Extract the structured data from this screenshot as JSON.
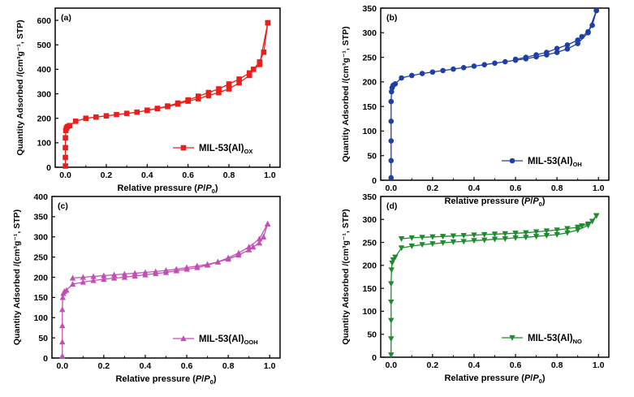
{
  "chart_data": [
    {
      "type": "line",
      "panel_label": "(a)",
      "legend_name": "MIL-53(Al)",
      "legend_sub": "OX",
      "color": "#e8201c",
      "marker": "square",
      "xlabel_main": "Relative pressure (",
      "xlabel_p": "P",
      "xlabel_slash": "/",
      "xlabel_p0": "P",
      "xlabel_zero": "0",
      "xlabel_close": ")",
      "ylabel": "Quantity Adsorbed /(cm³g⁻¹, STP)",
      "xlim": [
        -0.05,
        1.05
      ],
      "ylim": [
        0,
        650
      ],
      "xticks": [
        "0.0",
        "0.2",
        "0.4",
        "0.6",
        "0.8",
        "1.0"
      ],
      "yticks": [
        "0",
        "100",
        "200",
        "300",
        "400",
        "500",
        "600"
      ],
      "adsorption": [
        [
          0.0,
          5
        ],
        [
          0.0,
          40
        ],
        [
          0.0,
          80
        ],
        [
          0.0,
          120
        ],
        [
          0.002,
          150
        ],
        [
          0.005,
          160
        ],
        [
          0.01,
          166
        ],
        [
          0.02,
          170
        ],
        [
          0.05,
          188
        ],
        [
          0.1,
          200
        ],
        [
          0.15,
          205
        ],
        [
          0.2,
          210
        ],
        [
          0.25,
          215
        ],
        [
          0.3,
          220
        ],
        [
          0.35,
          225
        ],
        [
          0.4,
          232
        ],
        [
          0.45,
          240
        ],
        [
          0.5,
          250
        ],
        [
          0.55,
          262
        ],
        [
          0.6,
          275
        ],
        [
          0.65,
          290
        ],
        [
          0.7,
          305
        ],
        [
          0.75,
          320
        ],
        [
          0.8,
          340
        ],
        [
          0.85,
          360
        ],
        [
          0.9,
          385
        ],
        [
          0.95,
          420
        ],
        [
          0.99,
          590
        ]
      ],
      "desorption": [
        [
          0.99,
          590
        ],
        [
          0.97,
          470
        ],
        [
          0.95,
          430
        ],
        [
          0.92,
          400
        ],
        [
          0.9,
          375
        ],
        [
          0.85,
          345
        ],
        [
          0.8,
          320
        ],
        [
          0.75,
          305
        ],
        [
          0.7,
          293
        ],
        [
          0.65,
          280
        ],
        [
          0.6,
          270
        ],
        [
          0.55,
          258
        ],
        [
          0.5,
          248
        ],
        [
          0.45,
          240
        ],
        [
          0.4,
          233
        ]
      ]
    },
    {
      "type": "line",
      "panel_label": "(b)",
      "legend_name": "MIL-53(Al)",
      "legend_sub": "OH",
      "color": "#1f3fa6",
      "marker": "circle",
      "xlabel_main": "Relative pressure (",
      "xlabel_p": "P",
      "xlabel_slash": "/",
      "xlabel_p0": "P",
      "xlabel_zero": "0",
      "xlabel_close": ")",
      "ylabel": "Quantity Adsorbed /(cm³g⁻¹, STP)",
      "xlim": [
        -0.05,
        1.05
      ],
      "ylim": [
        0,
        350
      ],
      "xticks": [
        "0.0",
        "0.2",
        "0.4",
        "0.6",
        "0.8",
        "1.0"
      ],
      "yticks": [
        "0",
        "50",
        "100",
        "150",
        "200",
        "250",
        "300",
        "350"
      ],
      "adsorption": [
        [
          0.0,
          5
        ],
        [
          0.0,
          40
        ],
        [
          0.0,
          80
        ],
        [
          0.0,
          120
        ],
        [
          0.0,
          160
        ],
        [
          0.002,
          180
        ],
        [
          0.005,
          188
        ],
        [
          0.01,
          193
        ],
        [
          0.02,
          196
        ],
        [
          0.05,
          208
        ],
        [
          0.1,
          213
        ],
        [
          0.15,
          217
        ],
        [
          0.2,
          220
        ],
        [
          0.25,
          223
        ],
        [
          0.3,
          226
        ],
        [
          0.35,
          229
        ],
        [
          0.4,
          232
        ],
        [
          0.45,
          235
        ],
        [
          0.5,
          238
        ],
        [
          0.55,
          241
        ],
        [
          0.6,
          244
        ],
        [
          0.65,
          247
        ],
        [
          0.7,
          251
        ],
        [
          0.75,
          255
        ],
        [
          0.8,
          260
        ],
        [
          0.85,
          267
        ],
        [
          0.9,
          278
        ],
        [
          0.95,
          300
        ],
        [
          0.99,
          345
        ]
      ],
      "desorption": [
        [
          0.99,
          345
        ],
        [
          0.97,
          315
        ],
        [
          0.95,
          302
        ],
        [
          0.92,
          292
        ],
        [
          0.9,
          285
        ],
        [
          0.85,
          275
        ],
        [
          0.8,
          268
        ],
        [
          0.75,
          260
        ],
        [
          0.7,
          255
        ],
        [
          0.65,
          250
        ],
        [
          0.6,
          246
        ]
      ]
    },
    {
      "type": "line",
      "panel_label": "(c)",
      "legend_name": "MIL-53(Al)",
      "legend_sub": "OOH",
      "color": "#c24fb5",
      "marker": "triangle-up",
      "xlabel_main": "Relative pressure (",
      "xlabel_p": "P",
      "xlabel_slash": "/",
      "xlabel_p0": "P",
      "xlabel_zero": "0",
      "xlabel_close": ")",
      "ylabel": "Quantity Adsorbed /(cm³g⁻¹, STP)",
      "xlim": [
        -0.05,
        1.05
      ],
      "ylim": [
        0,
        400
      ],
      "xticks": [
        "0.0",
        "0.2",
        "0.4",
        "0.6",
        "0.8",
        "1.0"
      ],
      "yticks": [
        "0",
        "50",
        "100",
        "150",
        "200",
        "250",
        "300",
        "350",
        "400"
      ],
      "adsorption": [
        [
          0.0,
          5
        ],
        [
          0.0,
          40
        ],
        [
          0.0,
          80
        ],
        [
          0.0,
          120
        ],
        [
          0.002,
          150
        ],
        [
          0.005,
          160
        ],
        [
          0.01,
          165
        ],
        [
          0.02,
          168
        ],
        [
          0.05,
          183
        ],
        [
          0.1,
          188
        ],
        [
          0.15,
          192
        ],
        [
          0.2,
          195
        ],
        [
          0.25,
          198
        ],
        [
          0.3,
          200
        ],
        [
          0.35,
          203
        ],
        [
          0.4,
          206
        ],
        [
          0.45,
          209
        ],
        [
          0.5,
          212
        ],
        [
          0.55,
          216
        ],
        [
          0.6,
          220
        ],
        [
          0.65,
          224
        ],
        [
          0.7,
          230
        ],
        [
          0.75,
          238
        ],
        [
          0.8,
          248
        ],
        [
          0.85,
          260
        ],
        [
          0.9,
          275
        ],
        [
          0.95,
          295
        ],
        [
          0.99,
          332
        ]
      ],
      "desorption": [
        [
          0.99,
          332
        ],
        [
          0.97,
          300
        ],
        [
          0.95,
          285
        ],
        [
          0.92,
          275
        ],
        [
          0.9,
          268
        ],
        [
          0.85,
          255
        ],
        [
          0.8,
          245
        ],
        [
          0.75,
          238
        ],
        [
          0.7,
          232
        ],
        [
          0.65,
          228
        ],
        [
          0.6,
          224
        ],
        [
          0.55,
          220
        ],
        [
          0.5,
          217
        ],
        [
          0.45,
          214
        ],
        [
          0.4,
          212
        ],
        [
          0.35,
          210
        ],
        [
          0.3,
          208
        ],
        [
          0.25,
          206
        ],
        [
          0.2,
          204
        ],
        [
          0.15,
          202
        ],
        [
          0.1,
          200
        ],
        [
          0.05,
          198
        ]
      ]
    },
    {
      "type": "line",
      "panel_label": "(d)",
      "legend_name": "MIL-53(Al)",
      "legend_sub": "NO",
      "color": "#1f8a2e",
      "marker": "triangle-down",
      "xlabel_main": "Relative pressure (",
      "xlabel_p": "P",
      "xlabel_slash": "/",
      "xlabel_p0": "P",
      "xlabel_zero": "0",
      "xlabel_close": ")",
      "ylabel": "Quantity Adsorbed /(cm³g⁻¹, STP)",
      "xlim": [
        -0.05,
        1.05
      ],
      "ylim": [
        0,
        350
      ],
      "xticks": [
        "0.0",
        "0.2",
        "0.4",
        "0.6",
        "0.8",
        "1.0"
      ],
      "yticks": [
        "0",
        "50",
        "100",
        "150",
        "200",
        "250",
        "300",
        "350"
      ],
      "adsorption": [
        [
          0.0,
          5
        ],
        [
          0.0,
          40
        ],
        [
          0.0,
          80
        ],
        [
          0.0,
          120
        ],
        [
          0.0,
          160
        ],
        [
          0.002,
          190
        ],
        [
          0.005,
          205
        ],
        [
          0.01,
          212
        ],
        [
          0.02,
          218
        ],
        [
          0.05,
          238
        ],
        [
          0.1,
          242
        ],
        [
          0.15,
          245
        ],
        [
          0.2,
          247
        ],
        [
          0.25,
          249
        ],
        [
          0.3,
          251
        ],
        [
          0.35,
          252
        ],
        [
          0.4,
          254
        ],
        [
          0.45,
          255
        ],
        [
          0.5,
          257
        ],
        [
          0.55,
          258
        ],
        [
          0.6,
          260
        ],
        [
          0.65,
          261
        ],
        [
          0.7,
          263
        ],
        [
          0.75,
          265
        ],
        [
          0.8,
          267
        ],
        [
          0.85,
          271
        ],
        [
          0.9,
          277
        ],
        [
          0.95,
          287
        ],
        [
          0.99,
          308
        ]
      ],
      "desorption": [
        [
          0.99,
          308
        ],
        [
          0.97,
          296
        ],
        [
          0.95,
          290
        ],
        [
          0.92,
          286
        ],
        [
          0.9,
          283
        ],
        [
          0.85,
          280
        ],
        [
          0.8,
          277
        ],
        [
          0.75,
          275
        ],
        [
          0.7,
          273
        ],
        [
          0.65,
          271
        ],
        [
          0.6,
          270
        ],
        [
          0.55,
          269
        ],
        [
          0.5,
          268
        ],
        [
          0.45,
          267
        ],
        [
          0.4,
          266
        ],
        [
          0.35,
          265
        ],
        [
          0.3,
          264
        ],
        [
          0.25,
          263
        ],
        [
          0.2,
          262
        ],
        [
          0.15,
          261
        ],
        [
          0.1,
          260
        ],
        [
          0.05,
          258
        ]
      ]
    }
  ]
}
